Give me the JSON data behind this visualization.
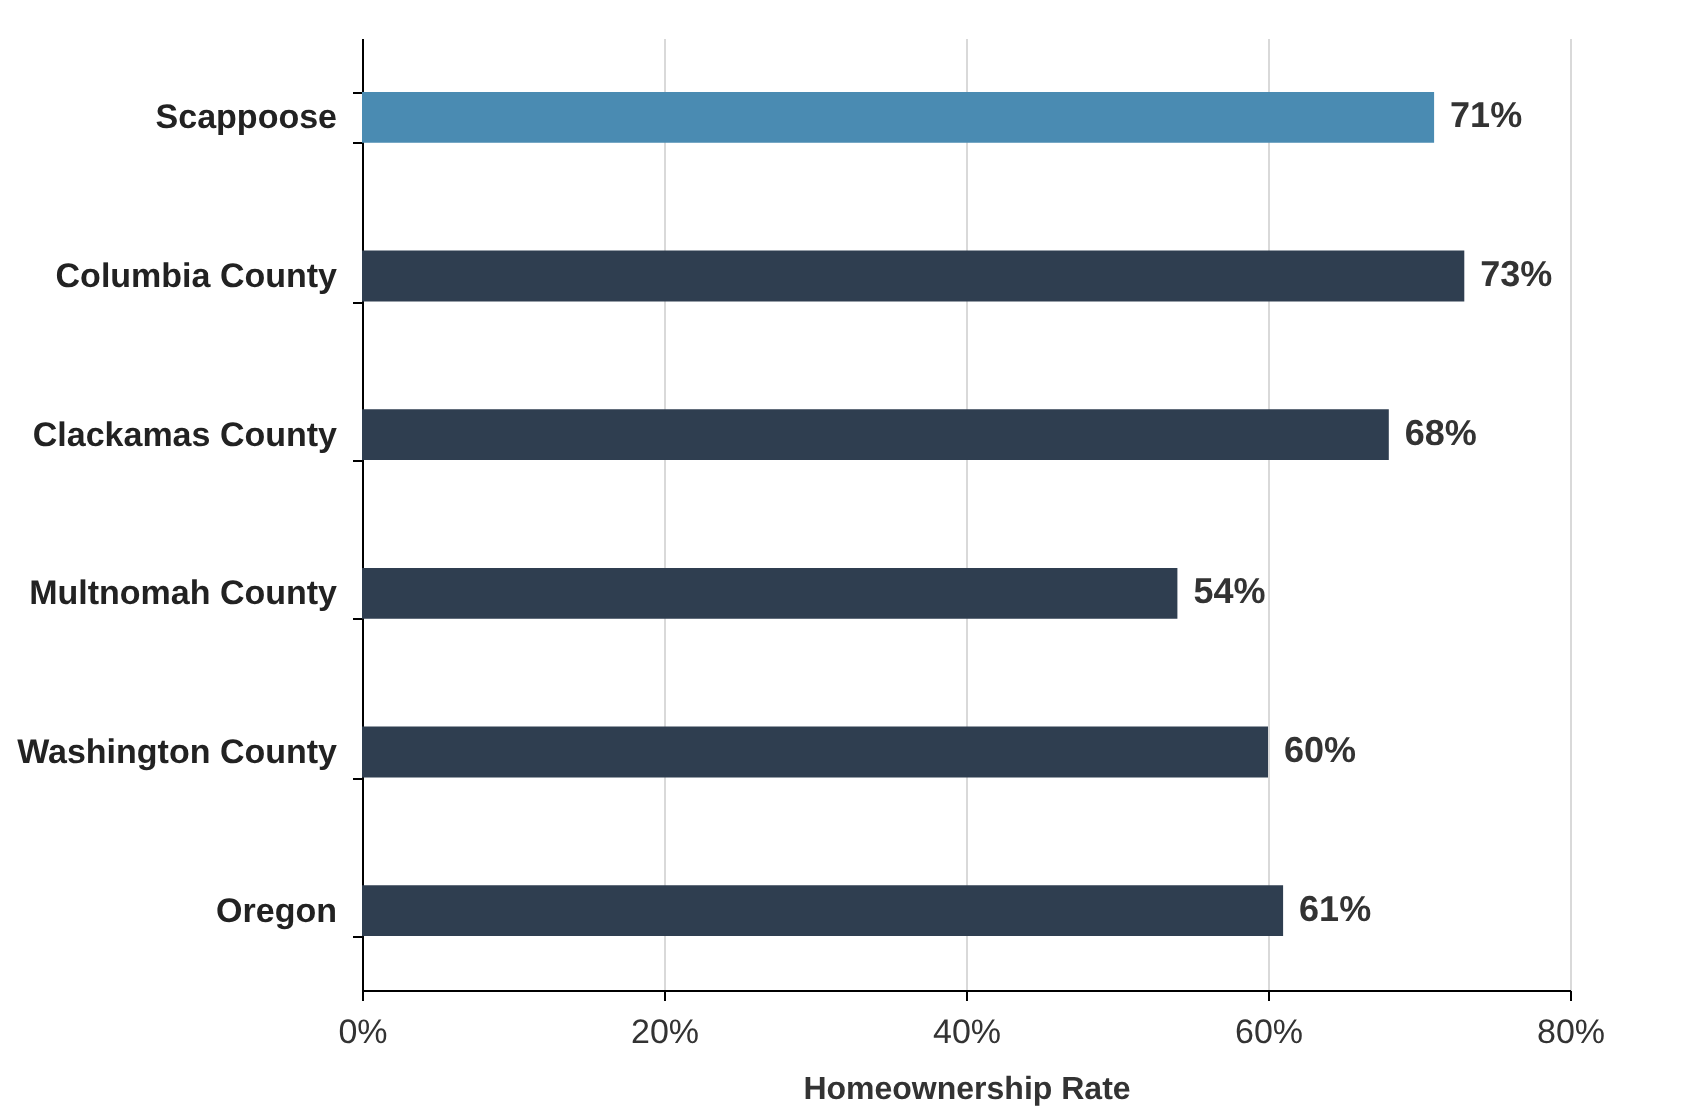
{
  "chart_data": {
    "type": "bar",
    "orientation": "horizontal",
    "xlabel": "Homeownership Rate",
    "categories": [
      "Scappoose",
      "Columbia County",
      "Clackamas County",
      "Multnomah County",
      "Washington County",
      "Oregon"
    ],
    "values": [
      71,
      73,
      68,
      54,
      60,
      61
    ],
    "colors": [
      "#4a8bb2",
      "#2f3e50",
      "#2f3e50",
      "#2f3e50",
      "#2f3e50",
      "#2f3e50"
    ],
    "value_labels": [
      "71%",
      "73%",
      "68%",
      "54%",
      "60%",
      "61%"
    ],
    "xlim": [
      0,
      80
    ],
    "xticks": [
      {
        "value": 0,
        "label": "0%"
      },
      {
        "value": 20,
        "label": "20%"
      },
      {
        "value": 40,
        "label": "40%"
      },
      {
        "value": 60,
        "label": "60%"
      },
      {
        "value": 80,
        "label": "80%"
      }
    ],
    "grid": "x"
  }
}
